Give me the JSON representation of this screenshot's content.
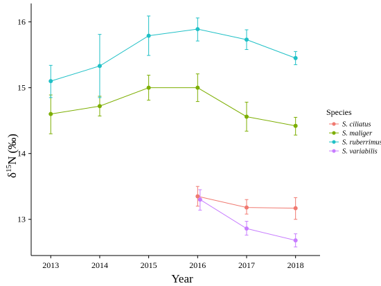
{
  "chart_data": {
    "type": "line",
    "xlabel": "Year",
    "ylabel_main": "δ",
    "ylabel_sup": "15",
    "ylabel_rest": "N (‰)",
    "x": [
      2013,
      2014,
      2015,
      2016,
      2017,
      2018
    ],
    "x_tick_labels": [
      "2013",
      "2014",
      "2015",
      "2016",
      "2017",
      "2018"
    ],
    "y_ticks": [
      13,
      14,
      15,
      16
    ],
    "y_tick_labels": [
      "13",
      "14",
      "15",
      "16"
    ],
    "xlim": [
      2012.6,
      2018.5
    ],
    "ylim": [
      12.45,
      16.28
    ],
    "grid": false,
    "legend": {
      "title": "Species",
      "placement": "right"
    },
    "series": [
      {
        "name": "S. ciliatus",
        "color": "#f07970",
        "x": [
          2016,
          2017,
          2018
        ],
        "values": [
          13.35,
          13.18,
          13.17
        ],
        "err_low": [
          13.2,
          13.08,
          13.0
        ],
        "err_high": [
          13.5,
          13.3,
          13.33
        ]
      },
      {
        "name": "S. maliger",
        "color": "#7cae00",
        "x": [
          2013,
          2014,
          2015,
          2016,
          2017,
          2018
        ],
        "values": [
          14.6,
          14.72,
          15.0,
          15.0,
          14.56,
          14.42
        ],
        "err_low": [
          14.3,
          14.57,
          14.81,
          14.79,
          14.34,
          14.28
        ],
        "err_high": [
          14.89,
          14.87,
          15.19,
          15.21,
          14.78,
          14.55
        ]
      },
      {
        "name": "S. ruberrimus",
        "color": "#1fc0c6",
        "x": [
          2013,
          2014,
          2015,
          2016,
          2017,
          2018
        ],
        "values": [
          15.1,
          15.33,
          15.79,
          15.89,
          15.73,
          15.45
        ],
        "err_low": [
          14.85,
          14.85,
          15.49,
          15.71,
          15.58,
          15.35
        ],
        "err_high": [
          15.34,
          15.81,
          16.09,
          16.06,
          15.88,
          15.55
        ]
      },
      {
        "name": "S. variabilis",
        "color": "#c77cff",
        "x": [
          2016.05,
          2017,
          2018
        ],
        "values": [
          13.3,
          12.86,
          12.68
        ],
        "err_low": [
          13.14,
          12.76,
          12.58
        ],
        "err_high": [
          13.45,
          12.97,
          12.78
        ]
      }
    ]
  }
}
